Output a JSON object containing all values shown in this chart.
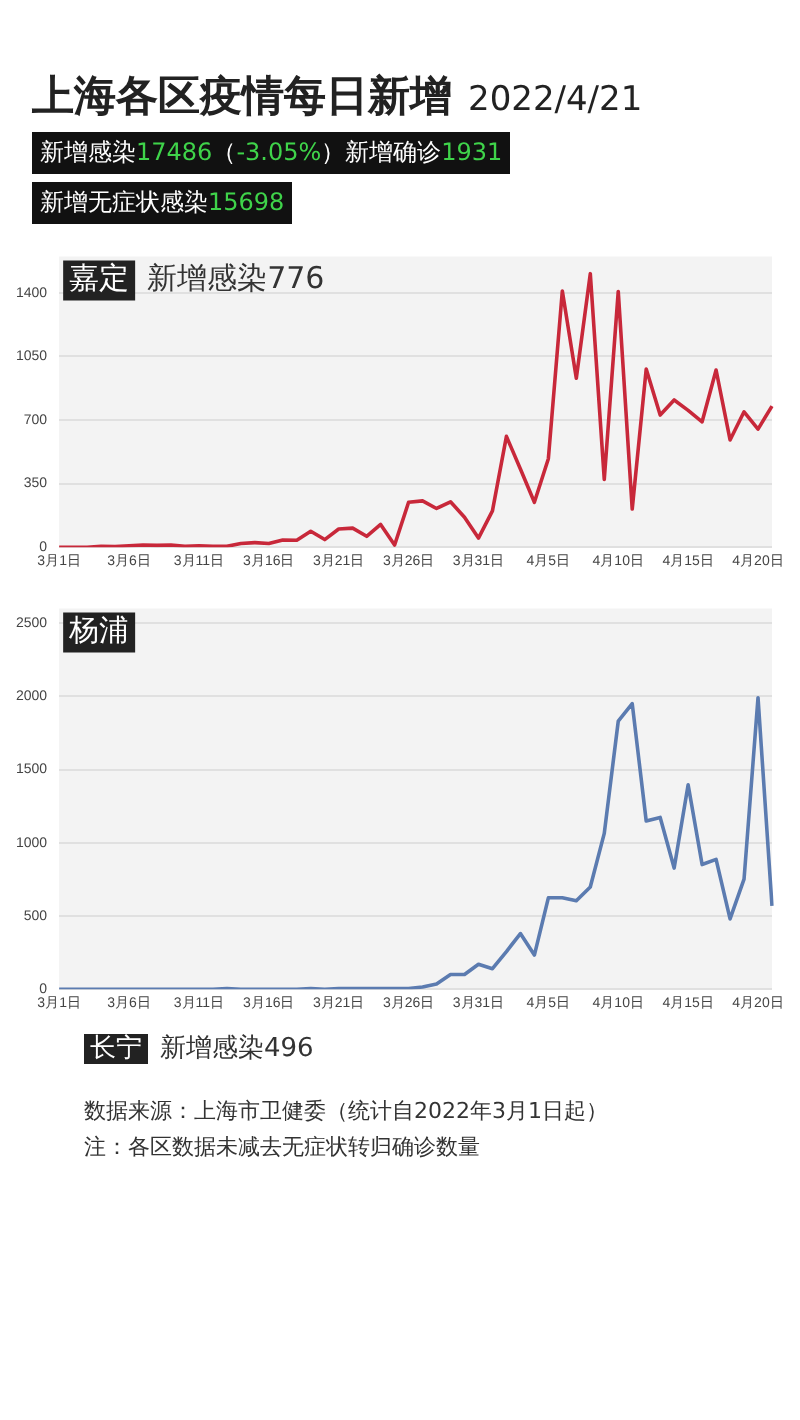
{
  "chart_data": [
    {
      "type": "other",
      "title": "上海各区疫情每日新增",
      "subtitle": "2022/4/21",
      "annotations": [
        "新增感染17486（-3.05%）新增确诊1931",
        "新增无症状感染15698"
      ]
    },
    {
      "type": "line",
      "title": "嘉定",
      "subtitle": "新增感染776",
      "categories": [
        "3月1日",
        null,
        null,
        null,
        null,
        "3月6日",
        null,
        null,
        null,
        null,
        "3月11日",
        null,
        null,
        null,
        null,
        "3月16日",
        null,
        null,
        null,
        null,
        "3月21日",
        null,
        null,
        null,
        null,
        "3月26日",
        null,
        null,
        null,
        null,
        "3月31日",
        null,
        null,
        null,
        null,
        "4月5日",
        null,
        null,
        null,
        null,
        "4月10日",
        null,
        null,
        null,
        null,
        "4月15日",
        null,
        null,
        null,
        null,
        "4月20日",
        null
      ],
      "series": [
        {
          "color": "#c8283a",
          "values": [
            0,
            0,
            0,
            5,
            3,
            8,
            12,
            10,
            12,
            5,
            8,
            5,
            5,
            20,
            25,
            20,
            40,
            38,
            88,
            42,
            100,
            105,
            60,
            125,
            12,
            247,
            255,
            213,
            250,
            165,
            50,
            200,
            610,
            430,
            247,
            487,
            1410,
            930,
            1505,
            373,
            1407,
            210,
            980,
            727,
            810,
            753,
            690,
            975,
            590,
            745,
            650,
            776
          ]
        }
      ],
      "ylim": [
        0,
        1600
      ],
      "yticks": [
        0,
        350,
        700,
        1050,
        1400
      ],
      "grid": "y",
      "legend": false,
      "marker": "none",
      "line_style": "solid"
    },
    {
      "type": "line",
      "title": "杨浦",
      "categories": [
        "3月1日",
        null,
        null,
        null,
        null,
        "3月6日",
        null,
        null,
        null,
        null,
        "3月11日",
        null,
        null,
        null,
        null,
        "3月16日",
        null,
        null,
        null,
        null,
        "3月21日",
        null,
        null,
        null,
        null,
        "3月26日",
        null,
        null,
        null,
        null,
        "3月31日",
        null,
        null,
        null,
        null,
        "4月5日",
        null,
        null,
        null,
        null,
        "4月10日",
        null,
        null,
        null,
        null,
        "4月15日",
        null,
        null,
        null,
        null,
        "4月20日",
        null
      ],
      "series": [
        {
          "color": "#5b7bb0",
          "values": [
            0,
            0,
            0,
            0,
            0,
            0,
            0,
            0,
            0,
            0,
            0,
            0,
            5,
            0,
            0,
            0,
            0,
            0,
            5,
            0,
            5,
            5,
            5,
            5,
            5,
            5,
            15,
            35,
            100,
            100,
            170,
            140,
            257,
            380,
            233,
            624,
            624,
            604,
            698,
            1064,
            1830,
            1950,
            1148,
            1173,
            827,
            1396,
            851,
            886,
            480,
            752,
            1990,
            569
          ]
        }
      ],
      "ylim": [
        0,
        2600
      ],
      "yticks": [
        0,
        500,
        1000,
        1500,
        2000,
        2500
      ],
      "grid": "y",
      "legend": false,
      "marker": "none",
      "line_style": "solid"
    },
    {
      "type": "other",
      "title": "长宁",
      "subtitle": "新增感染496",
      "annotations": [
        "数据来源：上海市卫健委（统计自2022年3月1日起）",
        "注：各区数据未减去无症状转归确诊数量"
      ]
    }
  ]
}
